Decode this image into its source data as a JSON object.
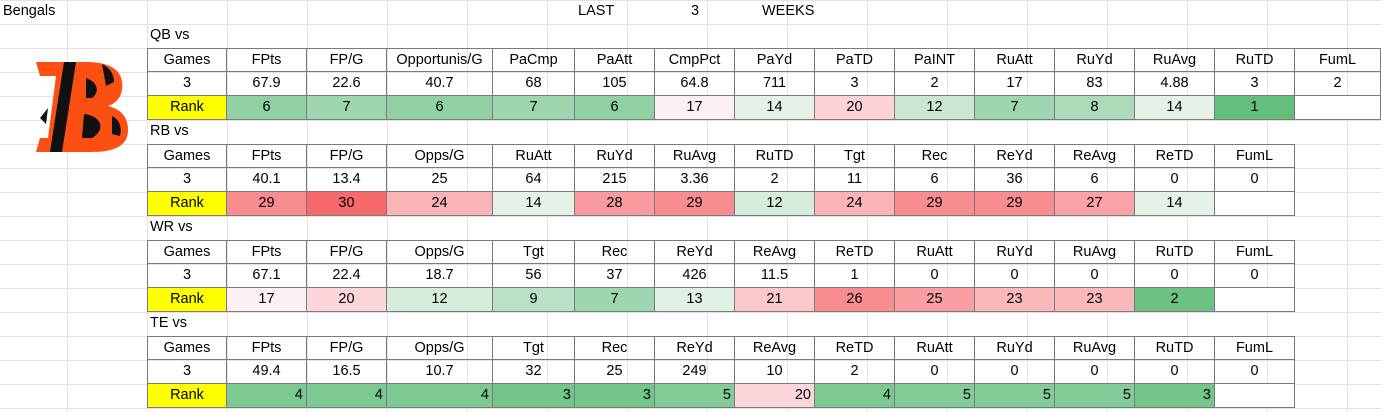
{
  "title_cells": {
    "team": "Bengals",
    "last": "LAST",
    "num": "3",
    "weeks": "WEEKS"
  },
  "logo_color": "#FB4F14",
  "rank_label_color": "#FFFF00",
  "sections": [
    {
      "label": "QB vs",
      "headers": [
        "Games",
        "FPts",
        "FP/G",
        "Opportunis/G",
        "PaCmp",
        "PaAtt",
        "CmpPct",
        "PaYd",
        "PaTD",
        "PaINT",
        "RuAtt",
        "RuYd",
        "RuAvg",
        "RuTD",
        "FumL"
      ],
      "values": [
        "3",
        "67.9",
        "22.6",
        "40.7",
        "68",
        "105",
        "64.8",
        "711",
        "3",
        "2",
        "17",
        "83",
        "4.88",
        "3",
        "2"
      ],
      "rank_label": "Rank",
      "ranks": [
        "6",
        "7",
        "6",
        "7",
        "6",
        "17",
        "14",
        "20",
        "12",
        "7",
        "8",
        "14",
        "1",
        ""
      ],
      "rank_colors": [
        "#8fd1a3",
        "#9ed6b0",
        "#8fd1a3",
        "#9ed6b0",
        "#8fd1a3",
        "#fdf0f2",
        "#e4f2e8",
        "#fcd2d6",
        "#c9e7d2",
        "#9ed6b0",
        "#acdbba",
        "#e4f2e8",
        "#63be7b",
        "#ffffff"
      ]
    },
    {
      "label": "RB vs",
      "headers": [
        "Games",
        "FPts",
        "FP/G",
        "Opps/G",
        "RuAtt",
        "RuYd",
        "RuAvg",
        "RuTD",
        "Tgt",
        "Rec",
        "ReYd",
        "ReAvg",
        "ReTD",
        "FumL"
      ],
      "values": [
        "3",
        "40.1",
        "13.4",
        "25",
        "64",
        "215",
        "3.36",
        "2",
        "11",
        "6",
        "36",
        "6",
        "0",
        "0"
      ],
      "rank_label": "Rank",
      "ranks": [
        "29",
        "30",
        "24",
        "14",
        "28",
        "29",
        "12",
        "24",
        "29",
        "29",
        "27",
        "14",
        ""
      ],
      "rank_colors": [
        "#f98c8e",
        "#f8696b",
        "#fbb3b6",
        "#e4f2e8",
        "#f99b9e",
        "#f98c8e",
        "#d6ecdd",
        "#fbb3b6",
        "#f98c8e",
        "#f98c8e",
        "#faa2a5",
        "#e4f2e8",
        "#ffffff"
      ]
    },
    {
      "label": "WR vs",
      "headers": [
        "Games",
        "FPts",
        "FP/G",
        "Opps/G",
        "Tgt",
        "Rec",
        "ReYd",
        "ReAvg",
        "ReTD",
        "RuAtt",
        "RuYd",
        "RuAvg",
        "RuTD",
        "FumL"
      ],
      "values": [
        "3",
        "67.1",
        "22.4",
        "18.7",
        "56",
        "37",
        "426",
        "11.5",
        "1",
        "0",
        "0",
        "0",
        "0",
        "0"
      ],
      "rank_label": "Rank",
      "ranks": [
        "17",
        "20",
        "12",
        "9",
        "7",
        "13",
        "21",
        "26",
        "25",
        "23",
        "23",
        "2",
        ""
      ],
      "rank_colors": [
        "#fdf0f2",
        "#fcd6da",
        "#d6ecdd",
        "#b9e1c5",
        "#9ed6b0",
        "#dff0e4",
        "#fcc7cb",
        "#f98c8e",
        "#fa9ea1",
        "#fbb8bb",
        "#fbb8bb",
        "#6cc283",
        "#ffffff"
      ]
    },
    {
      "label": "TE vs",
      "headers": [
        "Games",
        "FPts",
        "FP/G",
        "Opps/G",
        "Tgt",
        "Rec",
        "ReYd",
        "ReAvg",
        "ReTD",
        "RuAtt",
        "RuYd",
        "RuAvg",
        "RuTD",
        "FumL"
      ],
      "values": [
        "3",
        "49.4",
        "16.5",
        "10.7",
        "32",
        "25",
        "249",
        "10",
        "2",
        "0",
        "0",
        "0",
        "0",
        "0"
      ],
      "rank_label": "Rank",
      "ranks": [
        "4",
        "4",
        "4",
        "3",
        "3",
        "5",
        "20",
        "4",
        "5",
        "5",
        "5",
        "3",
        ""
      ],
      "rank_colors": [
        "#7cc992",
        "#7cc992",
        "#7cc992",
        "#73c58a",
        "#73c58a",
        "#83cc98",
        "#fcd6da",
        "#7cc992",
        "#83cc98",
        "#83cc98",
        "#83cc98",
        "#73c58a",
        "#ffffff"
      ]
    }
  ]
}
